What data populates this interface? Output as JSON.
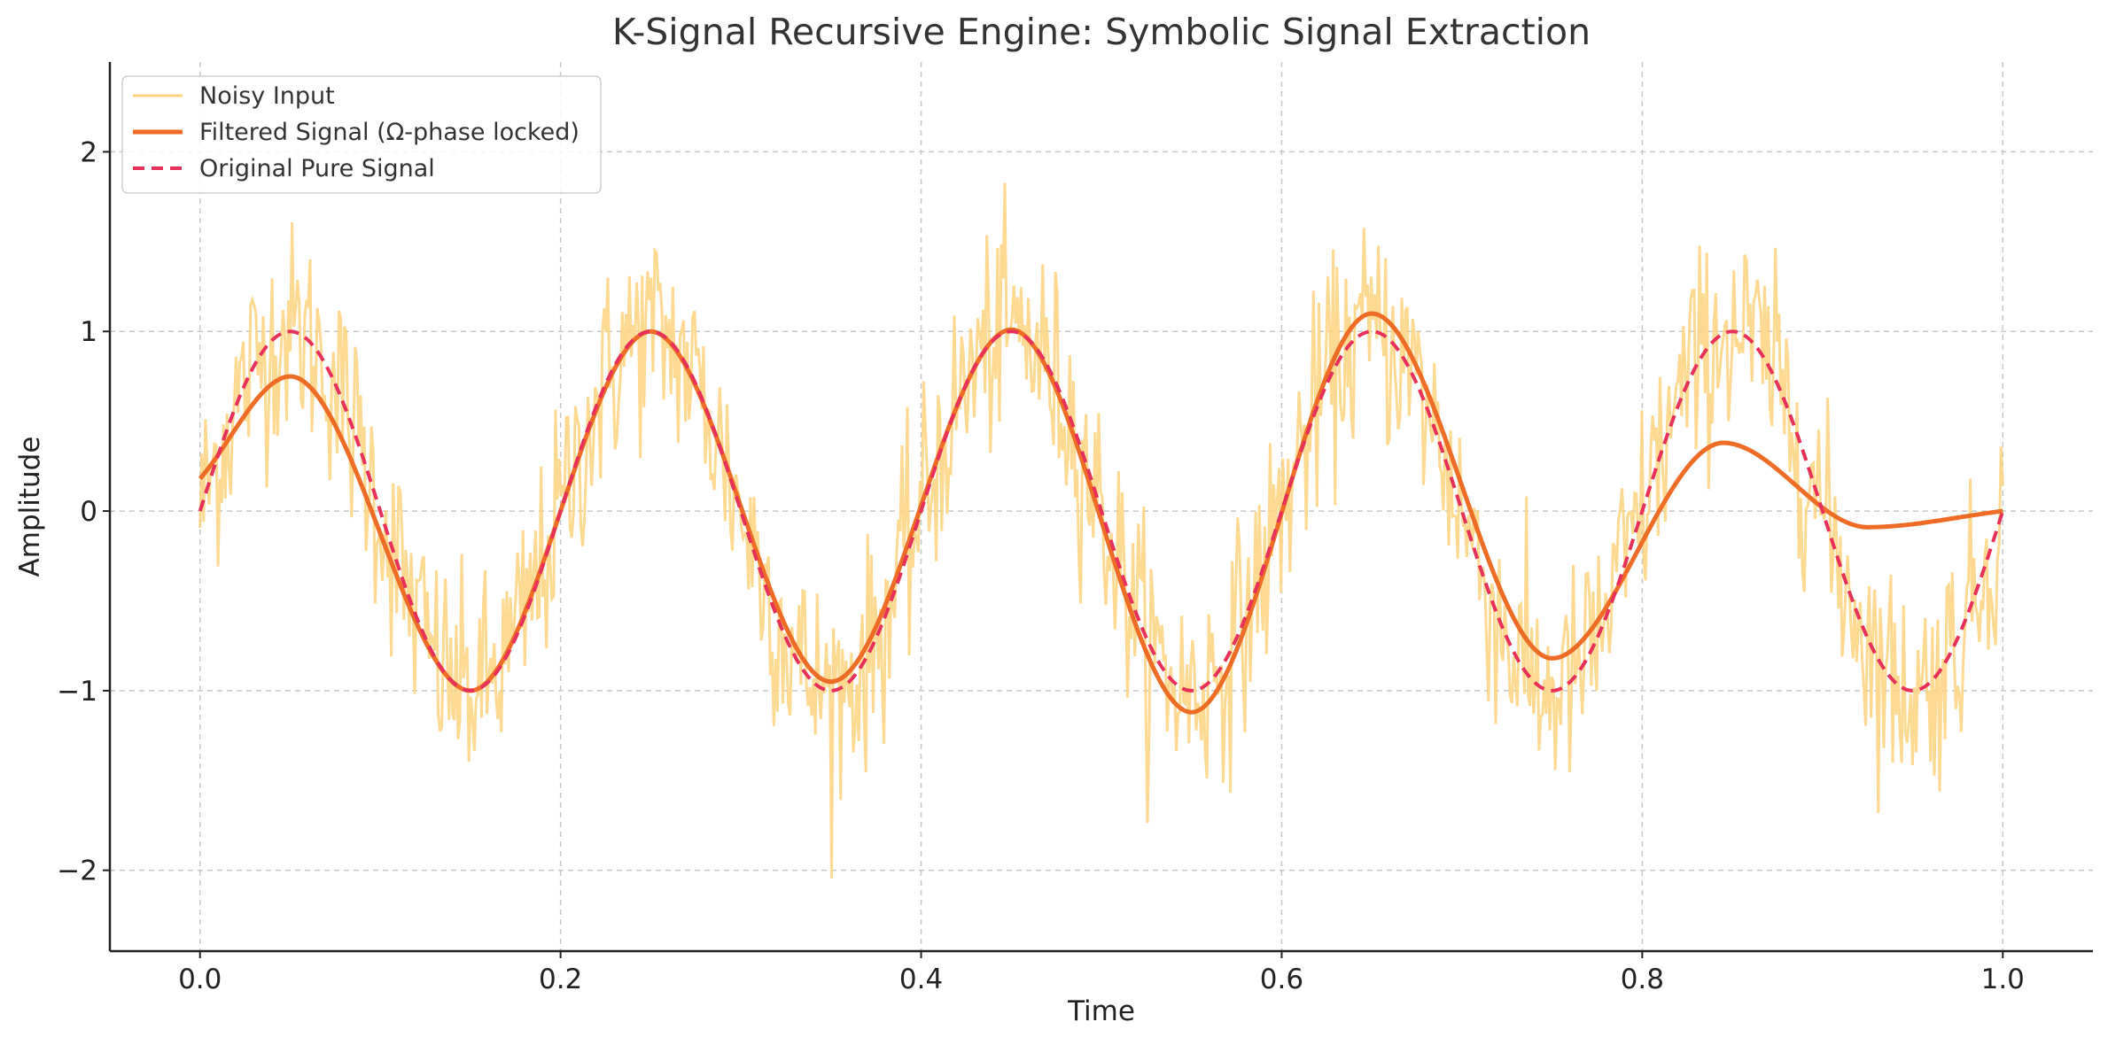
{
  "chart_data": {
    "type": "line",
    "title": "K-Signal Recursive Engine: Symbolic Signal Extraction",
    "xlabel": "Time",
    "ylabel": "Amplitude",
    "xlim": [
      -0.05,
      1.05
    ],
    "ylim": [
      -2.45,
      2.5
    ],
    "xticks": [
      0.0,
      0.2,
      0.4,
      0.6,
      0.8,
      1.0
    ],
    "xtick_labels": [
      "0.0",
      "0.2",
      "0.4",
      "0.6",
      "0.8",
      "1.0"
    ],
    "yticks": [
      -2,
      -1,
      0,
      1,
      2
    ],
    "ytick_labels": [
      "−2",
      "−1",
      "0",
      "1",
      "2"
    ],
    "grid": true,
    "legend_position": "top-left",
    "series": [
      {
        "name": "Noisy Input",
        "style": "solid",
        "color": "#FDD27F",
        "description_of_values": "pure signal plus random noise",
        "x_range": [
          0,
          1
        ],
        "samples": 1000,
        "noise_std": 0.3
      },
      {
        "name": "Filtered Signal (Ω-phase locked)",
        "style": "solid",
        "color": "#EF6C26",
        "x": [
          0.0,
          0.05,
          0.15,
          0.25,
          0.35,
          0.45,
          0.55,
          0.65,
          0.75,
          0.845,
          0.925,
          1.0
        ],
        "y": [
          0.18,
          0.75,
          -1.0,
          1.0,
          -0.95,
          1.01,
          -1.12,
          1.1,
          -0.82,
          0.38,
          -0.09,
          0.0
        ]
      },
      {
        "name": "Original Pure Signal",
        "style": "dashed",
        "color": "#E8315A",
        "formula_note": "sin(2π·5·t)",
        "x": [
          0.0,
          0.05,
          0.15,
          0.25,
          0.35,
          0.45,
          0.55,
          0.65,
          0.75,
          0.85,
          0.95,
          1.0
        ],
        "y": [
          0.0,
          1.0,
          -1.0,
          1.0,
          -1.0,
          1.0,
          -1.0,
          1.0,
          -1.0,
          1.0,
          -1.0,
          0.0
        ]
      }
    ]
  }
}
